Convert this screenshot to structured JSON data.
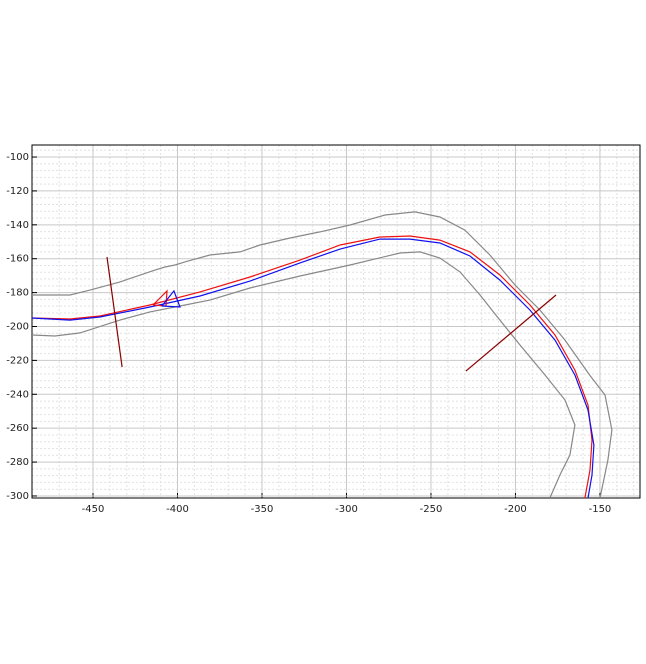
{
  "chart_data": {
    "type": "line",
    "xlim": [
      -486.1,
      -126.3
    ],
    "ylim": [
      -301.2,
      -92.9
    ],
    "xticks": [
      -450,
      -400,
      -350,
      -300,
      -250,
      -200,
      -150
    ],
    "yticks": [
      -100,
      -120,
      -140,
      -160,
      -180,
      -200,
      -220,
      -240,
      -260,
      -280,
      -300
    ],
    "grid": true,
    "minor_grid": true,
    "series": [
      {
        "color": "#888888",
        "x": [
          -486.1,
          -463.6,
          -451.8,
          -434,
          -413.3,
          -407.4,
          -401.5,
          -395.6,
          -380.8,
          -363,
          -351.2,
          -333.4,
          -315.7,
          -297.9,
          -277.2,
          -259.5,
          -244.7,
          -229.9,
          -215.1,
          -200.3,
          -185.5,
          -170.7,
          -156.1,
          -147,
          -142.9,
          -145.3,
          -150
        ],
        "values": [
          -181.4,
          -181.4,
          -178.5,
          -173.7,
          -166.7,
          -164.9,
          -163.7,
          -161.9,
          -157.8,
          -156,
          -151.9,
          -147.8,
          -144.2,
          -140.1,
          -134.2,
          -132.4,
          -135.4,
          -143.1,
          -157.8,
          -175.5,
          -190.3,
          -208,
          -228.6,
          -240.4,
          -261,
          -278.8,
          -301.2
        ]
      },
      {
        "color": "#888888",
        "x": [
          -486.1,
          -472.5,
          -457.7,
          -434,
          -416.3,
          -398.5,
          -380.8,
          -357.1,
          -327.5,
          -297.9,
          -268.3,
          -256.5,
          -244.7,
          -232.8,
          -221,
          -209.2,
          -197.3,
          -182.5,
          -170.7,
          -164.8,
          -167.8,
          -173.7,
          -179.6
        ],
        "values": [
          -205,
          -205.6,
          -203.8,
          -196.2,
          -191.4,
          -187.9,
          -184.4,
          -177.3,
          -170.2,
          -163.7,
          -156.6,
          -156,
          -159.6,
          -167.8,
          -181.4,
          -196.2,
          -210.9,
          -228.6,
          -243.4,
          -258.1,
          -275.8,
          -287.6,
          -301.2
        ]
      },
      {
        "color": "#ee1111",
        "x": [
          -486.1,
          -463.6,
          -445.9,
          -416.3,
          -386.7,
          -357.1,
          -327.5,
          -303.8,
          -280.2,
          -262.4,
          -244.7,
          -226.9,
          -209.2,
          -191.4,
          -176.6,
          -164.8,
          -157.1,
          -154.7,
          -155.9,
          -158.9
        ],
        "values": [
          -195,
          -195.6,
          -193.8,
          -187.3,
          -179.6,
          -170.8,
          -160.8,
          -151.9,
          -147.2,
          -146.6,
          -149,
          -156,
          -169.6,
          -187.3,
          -205,
          -225.7,
          -246.3,
          -267,
          -284.7,
          -301.2
        ]
      },
      {
        "color": "#1111ee",
        "x": [
          -486.1,
          -463.6,
          -445.9,
          -416.3,
          -386.7,
          -357.1,
          -327.5,
          -303.8,
          -280.2,
          -262.4,
          -244.7,
          -226.9,
          -209.2,
          -191.4,
          -176.6,
          -164.8,
          -157.1,
          -153.6,
          -154.7,
          -157.1
        ],
        "values": [
          -195,
          -196.2,
          -194.4,
          -188.5,
          -182,
          -173.2,
          -162.5,
          -154.3,
          -148.4,
          -148.4,
          -150.7,
          -158.4,
          -172.6,
          -190.3,
          -208,
          -228.6,
          -249.3,
          -269.9,
          -287.6,
          -301.2
        ]
      },
      {
        "color": "#ee1111",
        "x": [
          -414.5,
          -406.2,
          -406.8,
          -414.5
        ],
        "values": [
          -187.3,
          -179,
          -187.9,
          -187.3
        ]
      },
      {
        "color": "#1111ee",
        "x": [
          -409.2,
          -402.1,
          -398.5,
          -409.2
        ],
        "values": [
          -187.9,
          -179,
          -188.5,
          -187.9
        ]
      },
      {
        "color": "#8b0000",
        "x": [
          -441.7,
          -432.8
        ],
        "values": [
          -159,
          -223.9
        ]
      },
      {
        "color": "#8b0000",
        "x": [
          -229.3,
          -176
        ],
        "values": [
          -226.3,
          -181.4
        ]
      }
    ]
  }
}
